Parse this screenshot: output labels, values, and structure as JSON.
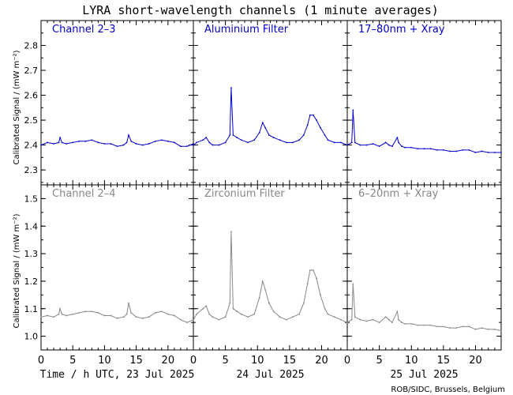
{
  "title": "LYRA short-wavelength channels (1 minute averages)",
  "ylabel": "Calibrated Signal / (mW m⁻²)",
  "credit": "ROB/SIDC, Brussels, Belgium",
  "colors": {
    "top": "#0000cc",
    "bottom": "#888888",
    "axis": "#000000"
  },
  "chart_data": [
    {
      "type": "line",
      "row": "top",
      "ylim": [
        2.24,
        2.9
      ],
      "yticks": [
        2.3,
        2.4,
        2.5,
        2.6,
        2.7,
        2.8
      ],
      "ytick_labels": [
        "2.3",
        "2.4",
        "2.5",
        "2.6",
        "2.7",
        "2.8"
      ],
      "xlim": [
        0,
        24
      ],
      "panels": [
        {
          "label": "Channel 2–3",
          "series": [
            {
              "x": [
                0,
                1,
                2,
                2.8,
                3,
                3.3,
                4,
                5,
                6,
                7,
                8,
                9,
                10,
                11,
                12,
                13,
                13.5,
                13.8,
                14.2,
                15,
                16,
                17,
                18,
                19,
                20,
                21,
                22,
                23,
                24
              ],
              "y": [
                2.4,
                2.41,
                2.405,
                2.41,
                2.43,
                2.41,
                2.405,
                2.41,
                2.415,
                2.415,
                2.42,
                2.41,
                2.405,
                2.405,
                2.395,
                2.4,
                2.41,
                2.44,
                2.415,
                2.405,
                2.4,
                2.405,
                2.415,
                2.42,
                2.415,
                2.41,
                2.395,
                2.395,
                2.405
              ]
            }
          ]
        },
        {
          "label": "Aluminium Filter",
          "series": [
            {
              "x": [
                0,
                0.5,
                1.5,
                2.0,
                2.5,
                3,
                4,
                5,
                5.7,
                5.9,
                6.2,
                6.8,
                7.5,
                8.5,
                9.5,
                10.3,
                10.8,
                11.2,
                11.8,
                12.5,
                13.5,
                14.5,
                15.5,
                16.5,
                17.2,
                17.8,
                18.2,
                18.7,
                19.2,
                19.8,
                20.5,
                21,
                22,
                23,
                24
              ],
              "y": [
                2.4,
                2.41,
                2.42,
                2.43,
                2.41,
                2.4,
                2.4,
                2.41,
                2.44,
                2.63,
                2.44,
                2.43,
                2.42,
                2.41,
                2.42,
                2.45,
                2.49,
                2.47,
                2.44,
                2.43,
                2.42,
                2.41,
                2.41,
                2.42,
                2.44,
                2.48,
                2.52,
                2.52,
                2.5,
                2.47,
                2.44,
                2.42,
                2.41,
                2.41,
                2.4
              ]
            }
          ]
        },
        {
          "label": "17–80nm + Xray",
          "series": [
            {
              "x": [
                0,
                0.7,
                0.9,
                1.2,
                2,
                3,
                4,
                5,
                6,
                6.5,
                7,
                7.8,
                8,
                8.5,
                9,
                10,
                11,
                12,
                13,
                14,
                15,
                16,
                17,
                18,
                19,
                20,
                21,
                22,
                23,
                24
              ],
              "y": [
                2.4,
                2.41,
                2.54,
                2.41,
                2.4,
                2.4,
                2.405,
                2.395,
                2.41,
                2.4,
                2.395,
                2.43,
                2.41,
                2.395,
                2.39,
                2.39,
                2.385,
                2.385,
                2.385,
                2.38,
                2.38,
                2.375,
                2.375,
                2.38,
                2.38,
                2.37,
                2.375,
                2.37,
                2.37,
                2.37
              ]
            }
          ]
        }
      ]
    },
    {
      "type": "line",
      "row": "bottom",
      "ylim": [
        0.95,
        1.55
      ],
      "yticks": [
        1.0,
        1.1,
        1.2,
        1.3,
        1.4,
        1.5
      ],
      "ytick_labels": [
        "1.0",
        "1.1",
        "1.2",
        "1.3",
        "1.4",
        "1.5"
      ],
      "xlim": [
        0,
        24
      ],
      "xticks": [
        0,
        5,
        10,
        15,
        20
      ],
      "xtick_labels": [
        "0",
        "5",
        "10",
        "15",
        "20"
      ],
      "panels": [
        {
          "label": "Channel 2–4",
          "xlabel": "Time / h UTC, 23 Jul 2025",
          "series": [
            {
              "x": [
                0,
                1,
                2,
                2.8,
                3,
                3.3,
                4,
                5,
                6,
                7,
                8,
                9,
                10,
                11,
                12,
                13,
                13.5,
                13.8,
                14.2,
                15,
                16,
                17,
                18,
                19,
                20,
                21,
                22,
                23,
                24
              ],
              "y": [
                1.07,
                1.075,
                1.07,
                1.08,
                1.1,
                1.08,
                1.075,
                1.08,
                1.085,
                1.09,
                1.09,
                1.085,
                1.075,
                1.075,
                1.065,
                1.07,
                1.08,
                1.12,
                1.085,
                1.07,
                1.065,
                1.07,
                1.085,
                1.09,
                1.08,
                1.075,
                1.06,
                1.05,
                1.06
              ]
            }
          ]
        },
        {
          "label": "Zirconium Filter",
          "xlabel": "24 Jul 2025",
          "series": [
            {
              "x": [
                0,
                0.5,
                1.5,
                2.0,
                2.5,
                3,
                4,
                5,
                5.7,
                5.9,
                6.2,
                6.8,
                7.5,
                8.5,
                9.5,
                10.3,
                10.8,
                11.2,
                11.8,
                12.5,
                13.5,
                14.5,
                15.5,
                16.5,
                17.2,
                17.8,
                18.2,
                18.7,
                19.2,
                19.8,
                20.5,
                21,
                22,
                23,
                24
              ],
              "y": [
                1.06,
                1.08,
                1.1,
                1.11,
                1.08,
                1.07,
                1.06,
                1.07,
                1.12,
                1.38,
                1.1,
                1.09,
                1.08,
                1.07,
                1.08,
                1.14,
                1.2,
                1.17,
                1.12,
                1.09,
                1.07,
                1.06,
                1.07,
                1.08,
                1.12,
                1.19,
                1.24,
                1.24,
                1.21,
                1.15,
                1.1,
                1.08,
                1.07,
                1.06,
                1.05
              ]
            }
          ]
        },
        {
          "label": "6–20nm + Xray",
          "xlabel": "25 Jul 2025",
          "series": [
            {
              "x": [
                0,
                0.7,
                0.9,
                1.2,
                2,
                3,
                4,
                5,
                6,
                6.5,
                7,
                7.8,
                8,
                8.5,
                9,
                10,
                11,
                12,
                13,
                14,
                15,
                16,
                17,
                18,
                19,
                20,
                21,
                22,
                23,
                24
              ],
              "y": [
                1.05,
                1.06,
                1.19,
                1.07,
                1.06,
                1.055,
                1.06,
                1.05,
                1.07,
                1.06,
                1.05,
                1.09,
                1.06,
                1.05,
                1.045,
                1.045,
                1.04,
                1.04,
                1.04,
                1.035,
                1.035,
                1.03,
                1.03,
                1.035,
                1.035,
                1.025,
                1.03,
                1.025,
                1.025,
                1.02
              ]
            }
          ]
        }
      ]
    }
  ]
}
